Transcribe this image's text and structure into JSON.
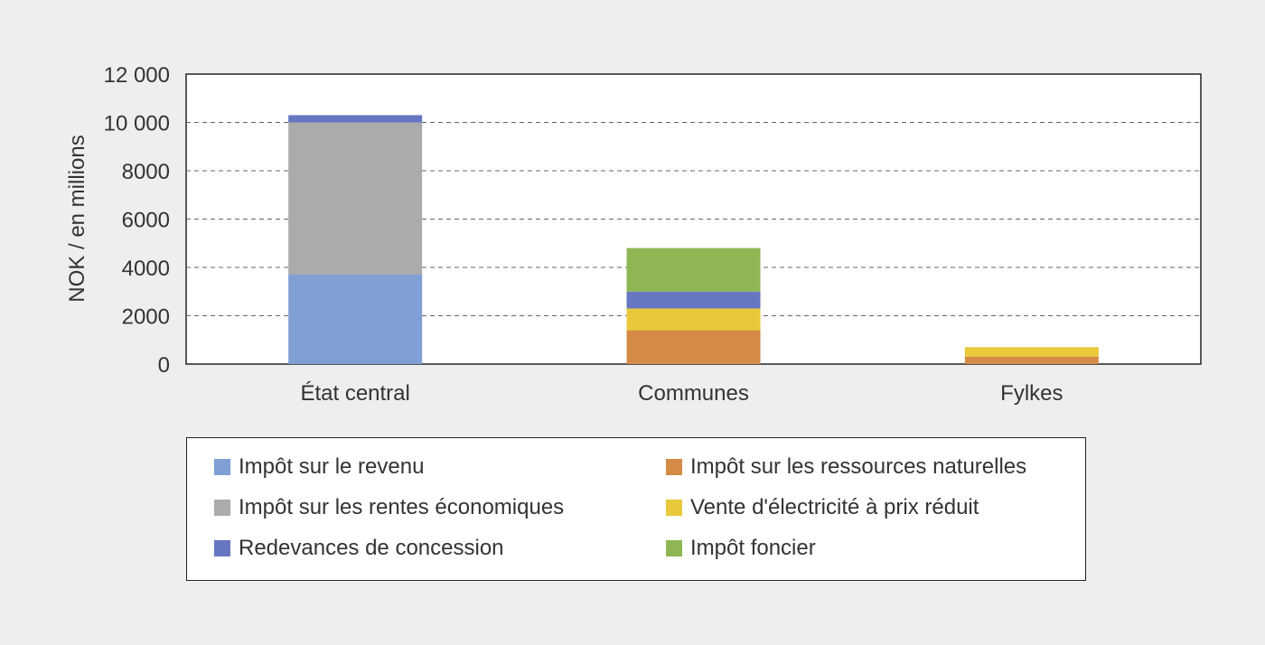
{
  "chart_data": {
    "type": "bar",
    "stacked": true,
    "ylabel": "NOK / en millions",
    "xlabel": "",
    "ylim": [
      0,
      12000
    ],
    "yticks": [
      0,
      2000,
      4000,
      6000,
      8000,
      10000,
      12000
    ],
    "ytick_labels": [
      "0",
      "2000",
      "4000",
      "6000",
      "8000",
      "10 000",
      "12 000"
    ],
    "grid": "horizontal-dashed",
    "legend_position": "bottom",
    "categories": [
      "État central",
      "Communes",
      "Fylkes"
    ],
    "series": [
      {
        "name": "Impôt sur le revenu",
        "color": "#7f9fd5",
        "values": [
          3700,
          0,
          0
        ]
      },
      {
        "name": "Impôt sur les ressources naturelles",
        "color": "#d58a45",
        "values": [
          0,
          1400,
          300
        ]
      },
      {
        "name": "Impôt sur les rentes économiques",
        "color": "#ababab",
        "values": [
          6300,
          0,
          0
        ]
      },
      {
        "name": "Vente d'électricité à prix réduit",
        "color": "#e8c93a",
        "values": [
          0,
          900,
          400
        ]
      },
      {
        "name": "Redevances de concession",
        "color": "#6676c1",
        "values": [
          300,
          700,
          0
        ]
      },
      {
        "name": "Impôt foncier",
        "color": "#8fb653",
        "values": [
          0,
          1800,
          0
        ]
      }
    ]
  }
}
